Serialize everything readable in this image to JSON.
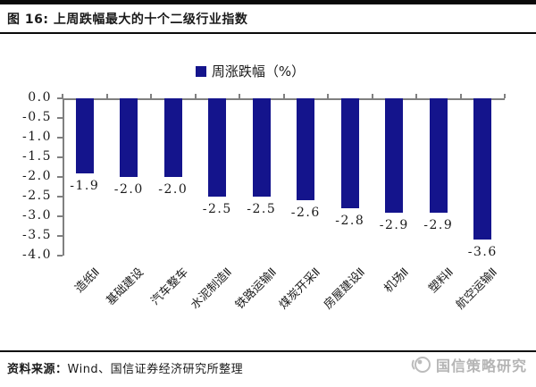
{
  "figure": {
    "title": "图 16: 上周跌幅最大的十个二级行业指数",
    "source_prefix": "资料来源：",
    "source_text": "Wind、国信证券经济研究所整理",
    "watermark": "国信策略研究",
    "watermark_color": "#b5b5b5"
  },
  "chart_data": {
    "type": "bar",
    "title": "上周跌幅最大的十个二级行业指数",
    "legend": "周涨跌幅（%）",
    "legend_position": "top-center",
    "categories": [
      "造纸Ⅱ",
      "基础建设",
      "汽车整车",
      "水泥制造Ⅱ",
      "铁路运输Ⅱ",
      "煤炭开采Ⅱ",
      "房屋建设Ⅱ",
      "机场Ⅱ",
      "塑料Ⅱ",
      "航空运输Ⅱ"
    ],
    "values": [
      -1.9,
      -2.0,
      -2.0,
      -2.5,
      -2.5,
      -2.6,
      -2.8,
      -2.9,
      -2.9,
      -3.6
    ],
    "data_labels": [
      "-1.9",
      "-2.0",
      "-2.0",
      "-2.5",
      "-2.5",
      "-2.6",
      "-2.8",
      "-2.9",
      "-2.9",
      "-3.6"
    ],
    "yticks": [
      "0.0",
      "-0.5",
      "-1.0",
      "-1.5",
      "-2.0",
      "-2.5",
      "-3.0",
      "-3.5",
      "-4.0"
    ],
    "ylim": [
      -4.0,
      0.0
    ],
    "ytick_step": 0.5,
    "grid": false,
    "bar_color": "#14148C",
    "axis_color": "#808080",
    "text_color": "#1a1a1a"
  }
}
